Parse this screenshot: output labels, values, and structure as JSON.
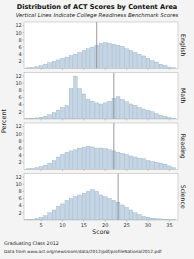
{
  "chart_data": {
    "type": "bar",
    "title": "Distribution of ACT Scores by Content Area",
    "subtitle": "Vertical Lines Indicate College Readiness Benchmark Scores",
    "y_label": "Percent",
    "x_label": "Score",
    "annotations": [
      "Graduating Class 2012",
      "Data from www.act.org/newsroom/data/2012/pdf/profileNational2012.pdf"
    ],
    "x": [
      1,
      2,
      3,
      4,
      5,
      6,
      7,
      8,
      9,
      10,
      11,
      12,
      13,
      14,
      15,
      16,
      17,
      18,
      19,
      20,
      21,
      22,
      23,
      24,
      25,
      26,
      27,
      28,
      29,
      30,
      31,
      32,
      33,
      34,
      35,
      36
    ],
    "series": [
      {
        "name": "English",
        "color": "#c5d5e4",
        "benchmark": 18,
        "values": [
          0.1,
          0.2,
          0.3,
          0.5,
          0.8,
          1.2,
          1.6,
          2.0,
          2.4,
          2.8,
          3.2,
          3.6,
          4.0,
          4.5,
          5.0,
          5.5,
          6.0,
          6.5,
          7.0,
          7.2,
          7.0,
          6.8,
          6.5,
          6.2,
          5.5,
          5.0,
          4.5,
          4.0,
          3.5,
          2.8,
          2.2,
          1.8,
          1.2,
          0.8,
          0.4,
          0.2
        ]
      },
      {
        "name": "Math",
        "color": "#c5d5e4",
        "benchmark": 22,
        "values": [
          0.1,
          0.1,
          0.2,
          0.3,
          0.5,
          0.8,
          1.2,
          1.8,
          2.5,
          3.2,
          3.8,
          8.5,
          12.0,
          8.5,
          7.0,
          5.5,
          5.0,
          4.5,
          4.2,
          4.5,
          5.0,
          5.8,
          6.2,
          5.5,
          4.8,
          4.2,
          3.8,
          3.2,
          2.8,
          2.4,
          2.0,
          1.5,
          1.0,
          0.7,
          0.4,
          0.2
        ]
      },
      {
        "name": "Reading",
        "color": "#c5d5e4",
        "benchmark": 22,
        "values": [
          0.1,
          0.2,
          0.3,
          0.5,
          0.8,
          1.2,
          1.8,
          2.5,
          3.5,
          4.2,
          4.8,
          5.2,
          5.5,
          6.0,
          6.2,
          6.5,
          6.3,
          6.0,
          6.0,
          5.8,
          5.5,
          5.2,
          4.8,
          4.5,
          4.2,
          3.8,
          3.5,
          3.2,
          3.0,
          2.5,
          2.2,
          2.0,
          1.8,
          1.5,
          1.0,
          0.5
        ]
      },
      {
        "name": "Science",
        "color": "#c5d5e4",
        "benchmark": 23,
        "values": [
          0.1,
          0.1,
          0.2,
          0.4,
          0.7,
          1.2,
          2.0,
          2.8,
          3.8,
          4.5,
          5.5,
          6.0,
          6.5,
          7.0,
          7.5,
          8.0,
          8.5,
          8.0,
          7.0,
          6.5,
          6.0,
          5.5,
          5.0,
          4.2,
          3.5,
          2.8,
          2.0,
          1.5,
          1.0,
          0.8,
          0.5,
          0.4,
          0.3,
          0.2,
          0.1,
          0.05
        ]
      }
    ],
    "xlim": [
      1,
      37
    ],
    "xticks": [
      5,
      10,
      15,
      20,
      25,
      30,
      35
    ],
    "ylim": [
      0,
      13
    ],
    "yticks": [
      2,
      4,
      6,
      8,
      10,
      12
    ],
    "grid": false
  }
}
